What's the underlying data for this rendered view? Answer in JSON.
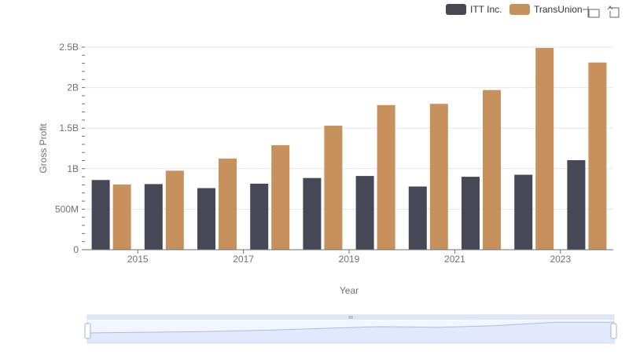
{
  "chart_data": {
    "type": "bar",
    "title": "",
    "xlabel": "Year",
    "ylabel": "Gross Profit",
    "categories": [
      "2014",
      "2015",
      "2016",
      "2017",
      "2018",
      "2019",
      "2020",
      "2021",
      "2022",
      "2023"
    ],
    "x_tick_labels": [
      "2015",
      "2017",
      "2019",
      "2021",
      "2023"
    ],
    "y_tick_labels": [
      "0",
      "500M",
      "1B",
      "1.5B",
      "2B",
      "2.5B"
    ],
    "ylim": [
      0,
      2500000000
    ],
    "y_ticks": [
      0,
      500000000,
      1000000000,
      1500000000,
      2000000000,
      2500000000
    ],
    "grid": true,
    "legend_position": "top-right",
    "series": [
      {
        "name": "ITT Inc.",
        "color": "#464855",
        "values": [
          860000000,
          810000000,
          760000000,
          815000000,
          885000000,
          910000000,
          780000000,
          900000000,
          925000000,
          1105000000
        ]
      },
      {
        "name": "TransUnion",
        "color": "#c6915d",
        "values": [
          805000000,
          975000000,
          1125000000,
          1290000000,
          1530000000,
          1785000000,
          1800000000,
          1970000000,
          2490000000,
          2310000000
        ]
      }
    ]
  },
  "toolbar": {
    "zoom_icon": "zoom-icon",
    "restore_icon": "restore-icon"
  }
}
